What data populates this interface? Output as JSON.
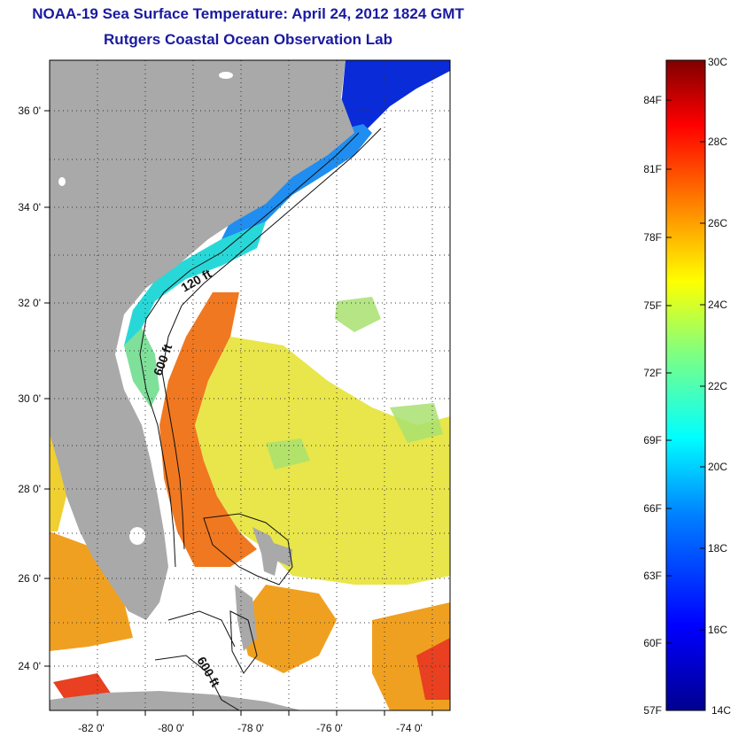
{
  "header": {
    "title": "NOAA-19 Sea Surface Temperature:  April 24, 2012 1824 GMT",
    "subtitle": "Rutgers Coastal Ocean Observation Lab"
  },
  "map": {
    "lon_ticks": [
      "-82 0'",
      "-80 0'",
      "-78 0'",
      "-76 0'",
      "-74 0'"
    ],
    "lat_ticks": [
      "36 0'",
      "34 0'",
      "32 0'",
      "30 0'",
      "28 0'",
      "26 0'",
      "24 0'"
    ],
    "contour_labels": [
      "120 ft",
      "600 ft",
      "600 ft"
    ],
    "colors": {
      "land": "#a9a9a9",
      "no_data": "#ffffff",
      "grid": "#333333"
    }
  },
  "colorbar": {
    "celsius_labels": [
      "30C",
      "28C",
      "26C",
      "24C",
      "22C",
      "20C",
      "18C",
      "16C",
      "14C"
    ],
    "fahrenheit_labels": [
      "84F",
      "81F",
      "78F",
      "75F",
      "72F",
      "69F",
      "66F",
      "63F",
      "60F",
      "57F"
    ],
    "range_c": [
      14,
      30
    ],
    "colors": [
      "#00008f",
      "#0000ff",
      "#0080ff",
      "#00ffff",
      "#80ff80",
      "#ffff00",
      "#ff8000",
      "#ff0000",
      "#800000"
    ]
  }
}
